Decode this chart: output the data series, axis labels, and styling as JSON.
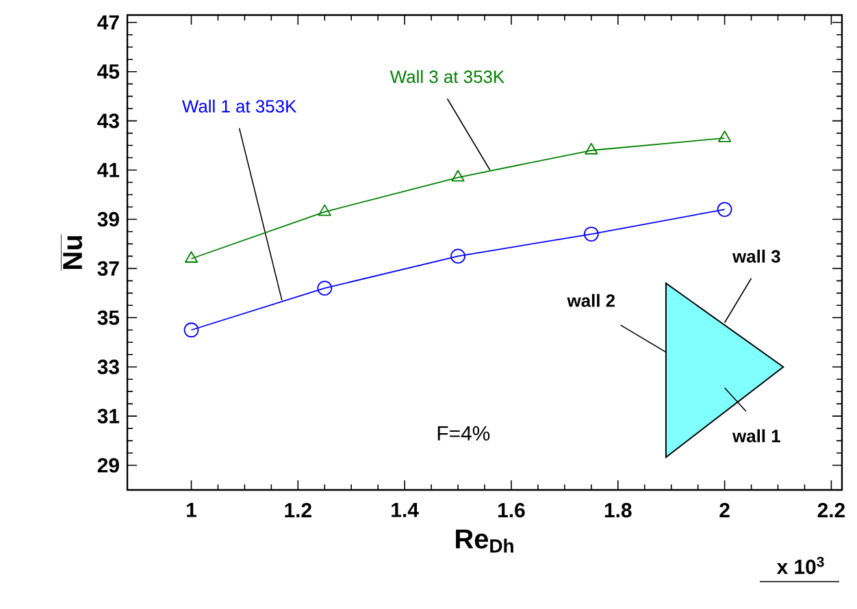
{
  "chart_data": {
    "type": "line",
    "xlabel": "Re$_{Dh}$",
    "ylabel": "Nu",
    "x": [
      1,
      1.25,
      1.5,
      1.75,
      2
    ],
    "series": [
      {
        "name": "Wall 1 at 353K",
        "color": "#0000ff",
        "marker": "circle",
        "values": [
          34.5,
          36.2,
          37.5,
          38.4,
          39.4
        ]
      },
      {
        "name": "Wall 3 at 353K",
        "color": "#008000",
        "marker": "triangle",
        "values": [
          37.4,
          39.3,
          40.7,
          41.8,
          42.3
        ]
      }
    ],
    "xlim": [
      0.88,
      2.22
    ],
    "ylim": [
      28,
      47.3
    ],
    "xticks": [
      1,
      1.2,
      1.4,
      1.6,
      1.8,
      2,
      2.2
    ],
    "yticks": [
      29,
      31,
      33,
      35,
      37,
      39,
      41,
      43,
      45,
      47
    ],
    "grid": false,
    "legend": false,
    "line_style": "solid",
    "annotations": [
      "F=4%",
      "wall 2",
      "wall 3",
      "wall 1",
      "x 10$^{3}$"
    ]
  }
}
